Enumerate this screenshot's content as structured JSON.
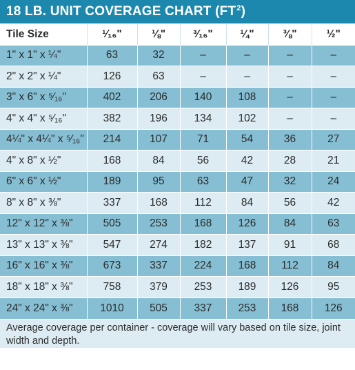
{
  "title": "18 LB. UNIT COVERAGE CHART",
  "title_unit": "(FT",
  "title_unit_sup": "2",
  "title_unit_close": ")",
  "header": [
    "Tile Size",
    "¹⁄₁₆\"",
    "⅛\"",
    "³⁄₁₆\"",
    "¼\"",
    "⅜\"",
    "½\""
  ],
  "rows": [
    [
      "1\" x 1\" x ¼\"",
      "63",
      "32",
      "–",
      "–",
      "–",
      "–"
    ],
    [
      "2\" x 2\" x ¼\"",
      "126",
      "63",
      "–",
      "–",
      "–",
      "–"
    ],
    [
      "3\" x 6\" x ⁵⁄₁₆\"",
      "402",
      "206",
      "140",
      "108",
      "–",
      "–"
    ],
    [
      "4\" x 4\" x ⁵⁄₁₆\"",
      "382",
      "196",
      "134",
      "102",
      "–",
      "–"
    ],
    [
      "4¼\" x 4¼\" x ⁵⁄₁₆\"",
      "214",
      "107",
      "71",
      "54",
      "36",
      "27"
    ],
    [
      "4\" x 8\" x ½\"",
      "168",
      "84",
      "56",
      "42",
      "28",
      "21"
    ],
    [
      "6\" x 6\" x ½\"",
      "189",
      "95",
      "63",
      "47",
      "32",
      "24"
    ],
    [
      "8\" x 8\" x ⅜\"",
      "337",
      "168",
      "112",
      "84",
      "56",
      "42"
    ],
    [
      "12\" x 12\" x ⅜\"",
      "505",
      "253",
      "168",
      "126",
      "84",
      "63"
    ],
    [
      "13\" x 13\" x ⅜\"",
      "547",
      "274",
      "182",
      "137",
      "91",
      "68"
    ],
    [
      "16\" x 16\" x ⅜\"",
      "673",
      "337",
      "224",
      "168",
      "112",
      "84"
    ],
    [
      "18\" x 18\" x ⅜\"",
      "758",
      "379",
      "253",
      "189",
      "126",
      "95"
    ],
    [
      "24\" x 24\" x ⅜\"",
      "1010",
      "505",
      "337",
      "253",
      "168",
      "126"
    ]
  ],
  "footnote": "Average coverage per container - coverage will vary based on tile size, joint width and depth.",
  "colors": {
    "title_bar": "#1c88ad",
    "row_dark": "#86bfd3",
    "row_light": "#dcecf2"
  }
}
